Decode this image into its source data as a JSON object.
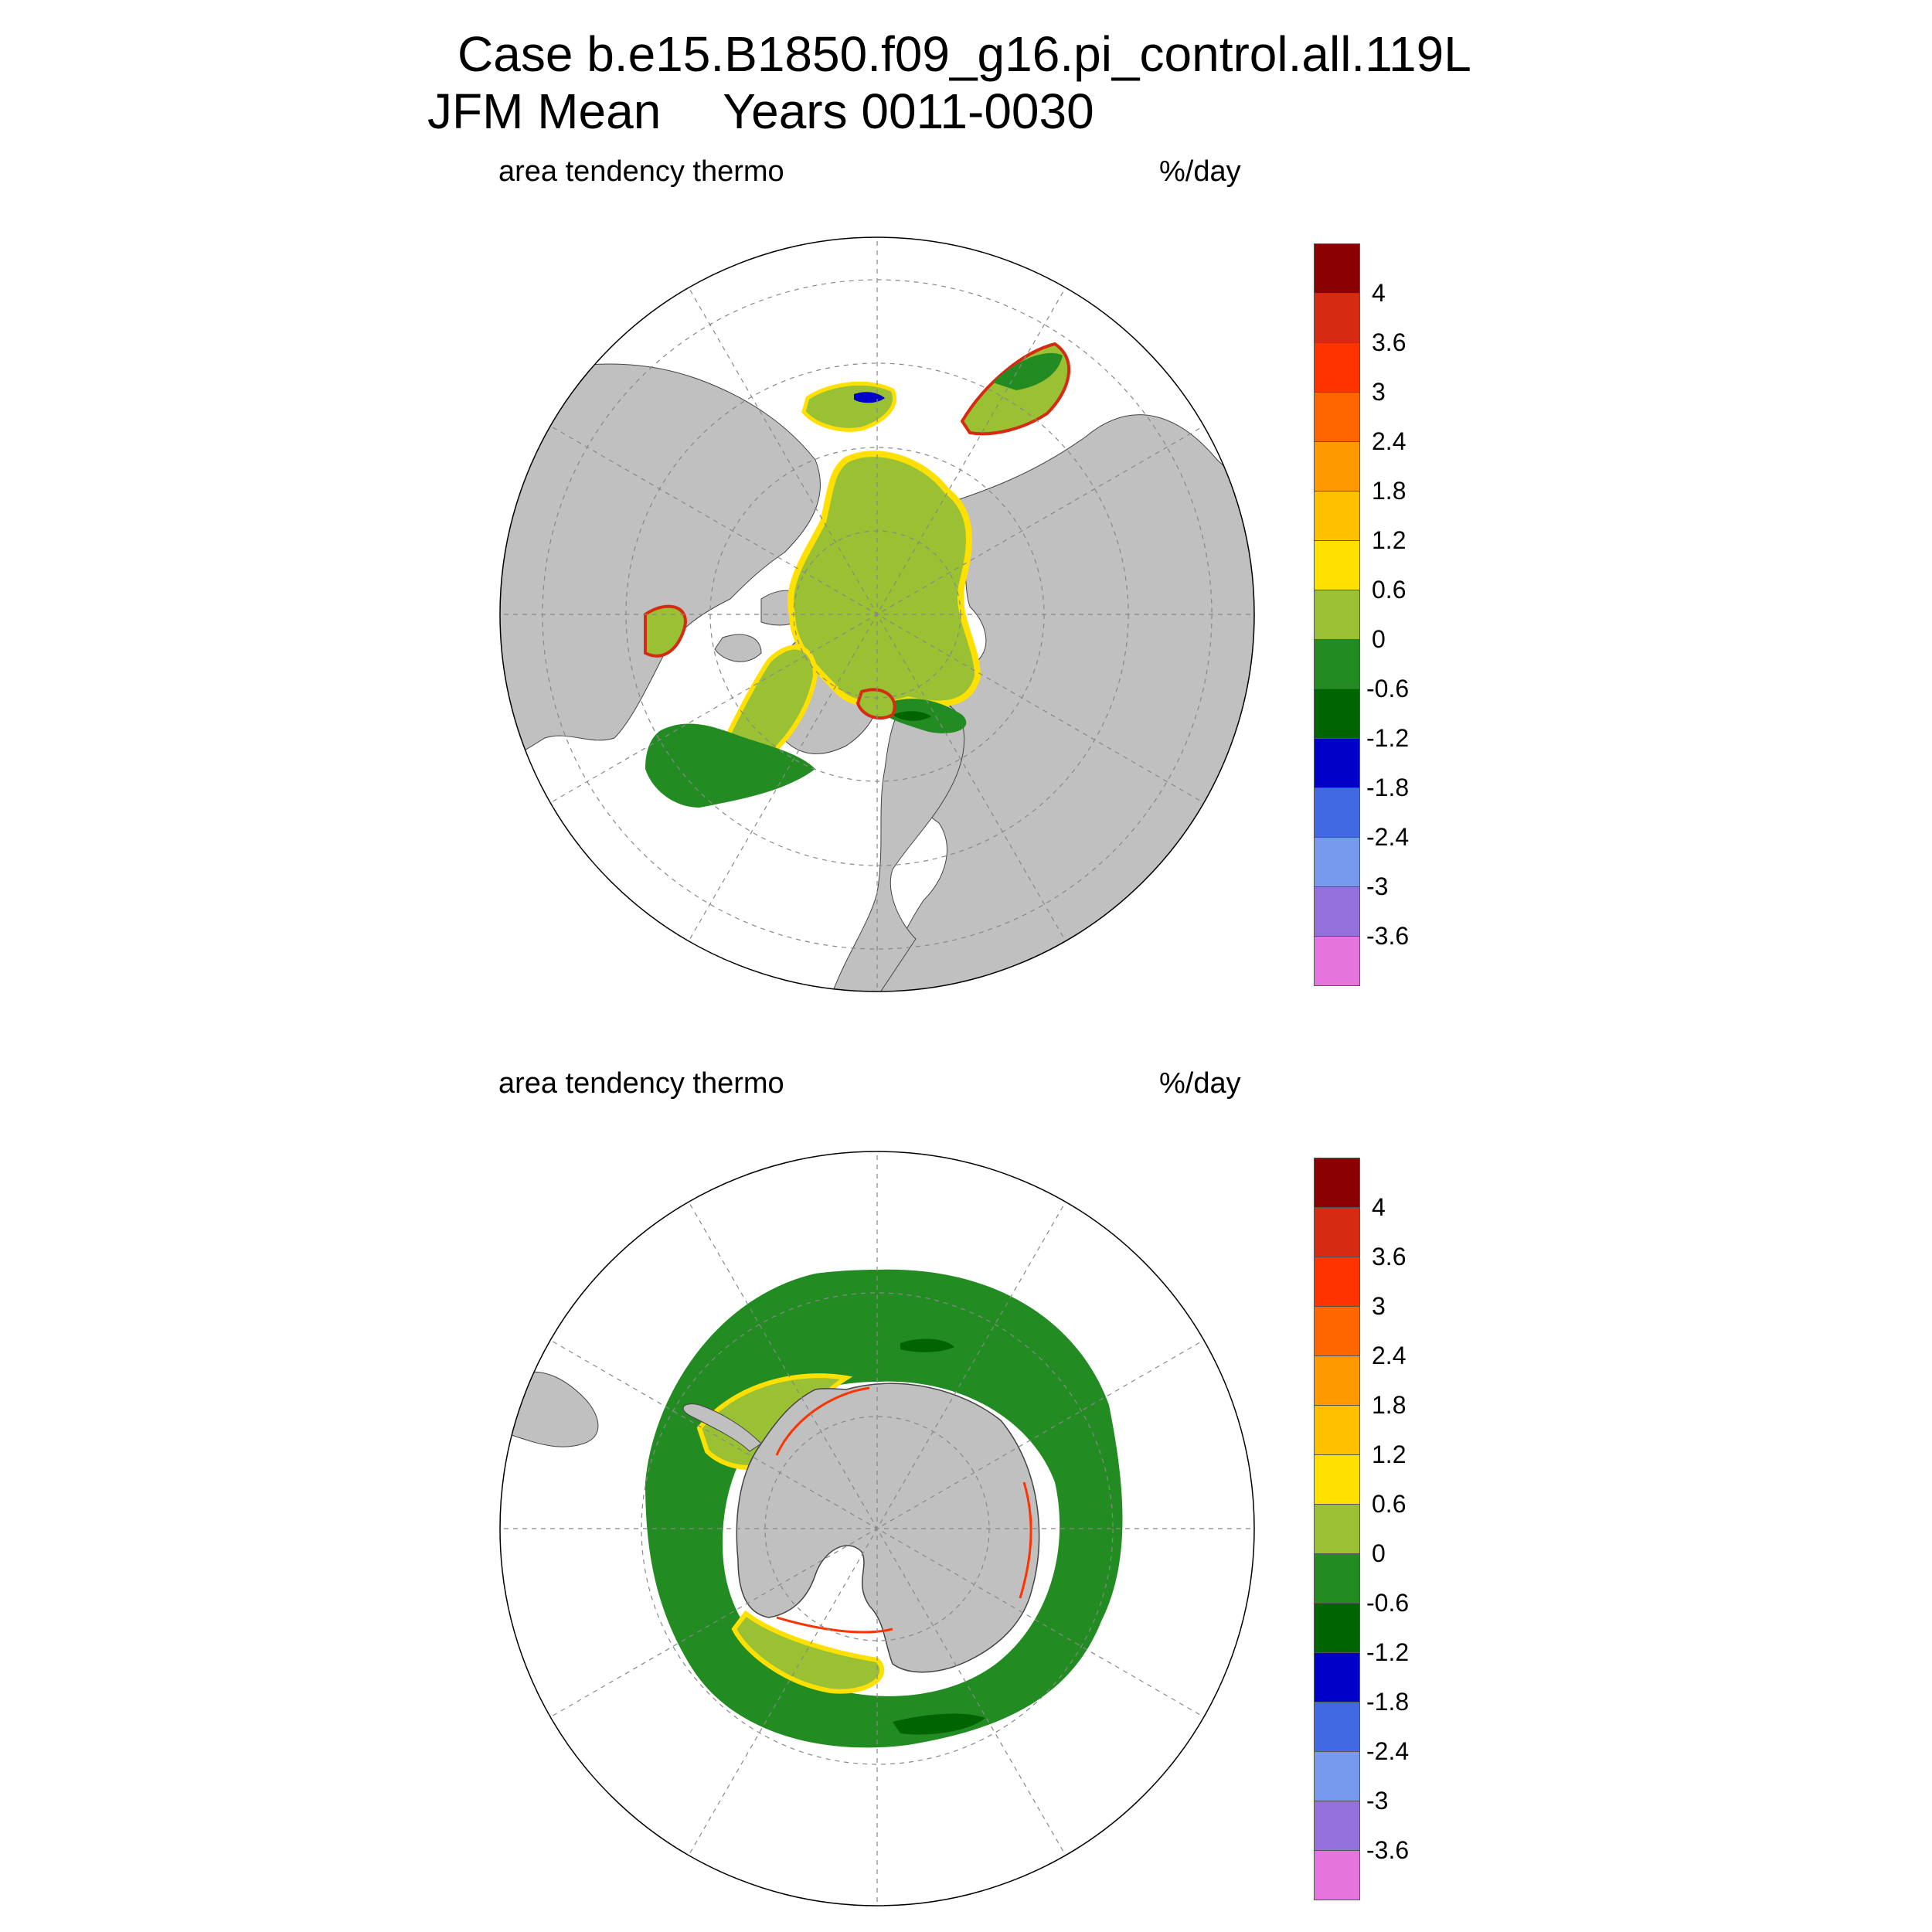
{
  "header": {
    "line1": "Case b.e15.B1850.f09_g16.pi_control.all.119L",
    "line2_period": "JFM Mean",
    "line2_years": "Years 0011-0030"
  },
  "panels": [
    {
      "hemisphere": "north",
      "left_label": "area tendency thermo",
      "right_label": "%/day"
    },
    {
      "hemisphere": "south",
      "left_label": "area tendency thermo",
      "right_label": "%/day"
    }
  ],
  "colorbar": {
    "colors": [
      "#8b0000",
      "#d62a12",
      "#ff3300",
      "#ff6600",
      "#ff9900",
      "#ffc000",
      "#ffe000",
      "#9ac133",
      "#228b22",
      "#006400",
      "#0000c8",
      "#4169e1",
      "#7799ee",
      "#9370db",
      "#e574dc"
    ],
    "tick_labels": [
      "4",
      "3.6",
      "3",
      "2.4",
      "1.8",
      "1.2",
      "0.6",
      "0",
      "-0.6",
      "-1.2",
      "-1.8",
      "-2.4",
      "-3",
      "-3.6"
    ]
  },
  "colors": {
    "land": "#c0c0c0",
    "ocean": "#ffffff",
    "grid": "#888888",
    "ice_interior": "#9ac133",
    "ice_edge_loss": "#228b22"
  }
}
